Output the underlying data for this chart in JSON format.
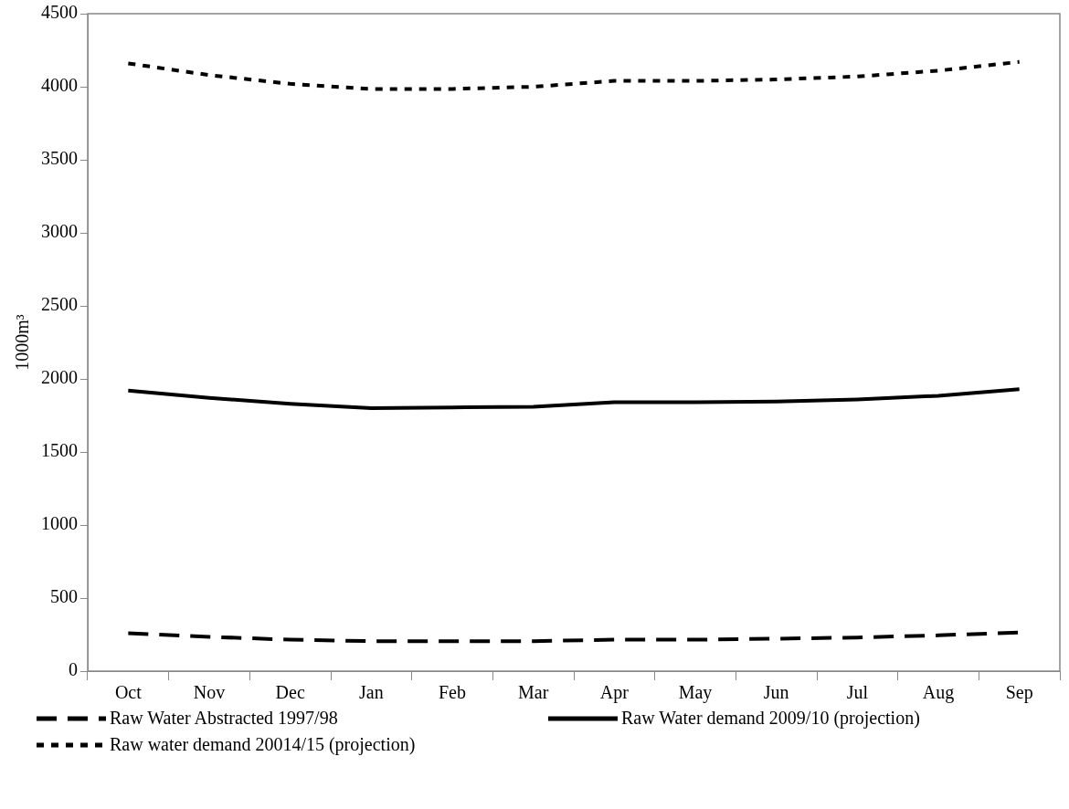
{
  "chart_data": {
    "type": "line",
    "ylabel": "1000m³",
    "categories": [
      "Oct",
      "Nov",
      "Dec",
      "Jan",
      "Feb",
      "Mar",
      "Apr",
      "May",
      "Jun",
      "Jul",
      "Aug",
      "Sep"
    ],
    "series": [
      {
        "name": "Raw Water Abstracted 1997/98",
        "color": "#000000",
        "line_style": "dashed",
        "values": [
          260,
          235,
          215,
          205,
          205,
          205,
          215,
          215,
          222,
          230,
          245,
          265
        ]
      },
      {
        "name": "Raw Water demand 2009/10 (projection)",
        "color": "#000000",
        "line_style": "solid",
        "values": [
          1920,
          1870,
          1830,
          1800,
          1805,
          1810,
          1840,
          1840,
          1845,
          1860,
          1885,
          1930
        ]
      },
      {
        "name": "Raw water demand 20014/15 (projection)",
        "color": "#000000",
        "line_style": "dotted",
        "values": [
          4160,
          4080,
          4020,
          3985,
          3985,
          4000,
          4040,
          4040,
          4050,
          4070,
          4110,
          4170
        ]
      }
    ],
    "ylim": [
      0,
      4500
    ],
    "yticks": [
      0,
      500,
      1000,
      1500,
      2000,
      2500,
      3000,
      3500,
      4000,
      4500
    ],
    "grid": false,
    "legend": "bottom",
    "marker": "none"
  }
}
